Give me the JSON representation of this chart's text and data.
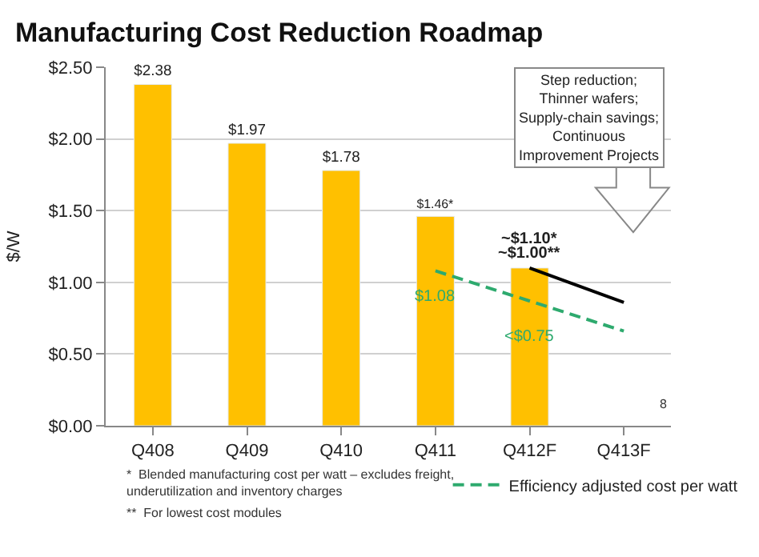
{
  "chart_data": {
    "type": "bar",
    "title": "Manufacturing Cost Reduction Roadmap",
    "ylabel": "$/W",
    "categories": [
      "Q408",
      "Q409",
      "Q410",
      "Q411",
      "Q412F",
      "Q413F"
    ],
    "series": [
      {
        "color": "#ffc000",
        "values": [
          2.38,
          1.97,
          1.78,
          1.46,
          1.1,
          null
        ],
        "value_labels": [
          "$2.38",
          "$1.97",
          "$1.78",
          "$1.46*",
          null,
          null
        ]
      },
      {
        "type": "line",
        "color": "#000000",
        "x": [
          "Q412F",
          "Q413F"
        ],
        "values": [
          1.1,
          0.86
        ],
        "line_style": "solid"
      },
      {
        "type": "line",
        "name": "Efficiency adjusted cost per watt",
        "color": "#2eaa6e",
        "x": [
          "Q411",
          "Q413F"
        ],
        "values": [
          1.08,
          0.66
        ],
        "line_style": "dashed"
      }
    ],
    "ylim": [
      0,
      2.5
    ],
    "yticks": [
      {
        "value": 0,
        "label": "$0.00"
      },
      {
        "value": 0.5,
        "label": "$0.50"
      },
      {
        "value": 1,
        "label": "$1.00"
      },
      {
        "value": 1.5,
        "label": "$1.50"
      },
      {
        "value": 2,
        "label": "$2.00"
      },
      {
        "value": 2.5,
        "label": "$2.50"
      }
    ],
    "grid": "y",
    "legend": "bottom right",
    "marker": "none",
    "annotations": [
      "~$1.10*",
      "~$1.00**",
      "$1.08",
      "<$0.75",
      "Step reduction;\nThinner wafers;\nSupply-chain savings;\nContinuous\nImprovement Projects",
      "*  Blended manufacturing cost per watt – excludes freight,\nunderutilization and inventory charges",
      "**  For lowest cost modules",
      "8"
    ]
  }
}
